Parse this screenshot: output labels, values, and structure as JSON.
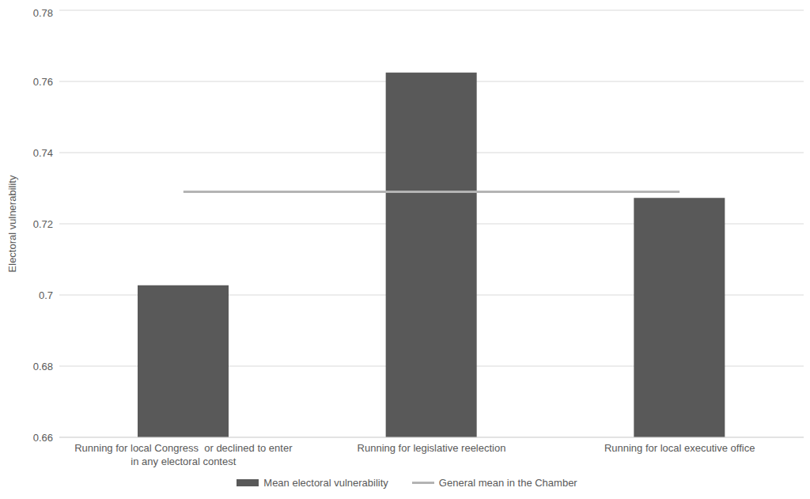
{
  "chart_data": {
    "type": "bar",
    "categories": [
      "Running for local Congress  or declined to enter in any electoral contest",
      "Running for legislative reelection",
      "Running for local executive office"
    ],
    "series": [
      {
        "name": "Mean electoral vulnerability",
        "type": "bar",
        "color": "#595959",
        "values": [
          0.7027,
          0.7625,
          0.7273
        ]
      },
      {
        "name": "General mean in the Chamber",
        "type": "line",
        "color": "#b4b4b4",
        "values": [
          0.729,
          0.729,
          0.729
        ]
      }
    ],
    "y_label": "Electoral vulnerability",
    "ylim": [
      0.66,
      0.78
    ],
    "yticks": [
      0.66,
      0.68,
      0.7,
      0.72,
      0.74,
      0.76,
      0.78
    ],
    "grid": true,
    "legend": "bottom"
  }
}
